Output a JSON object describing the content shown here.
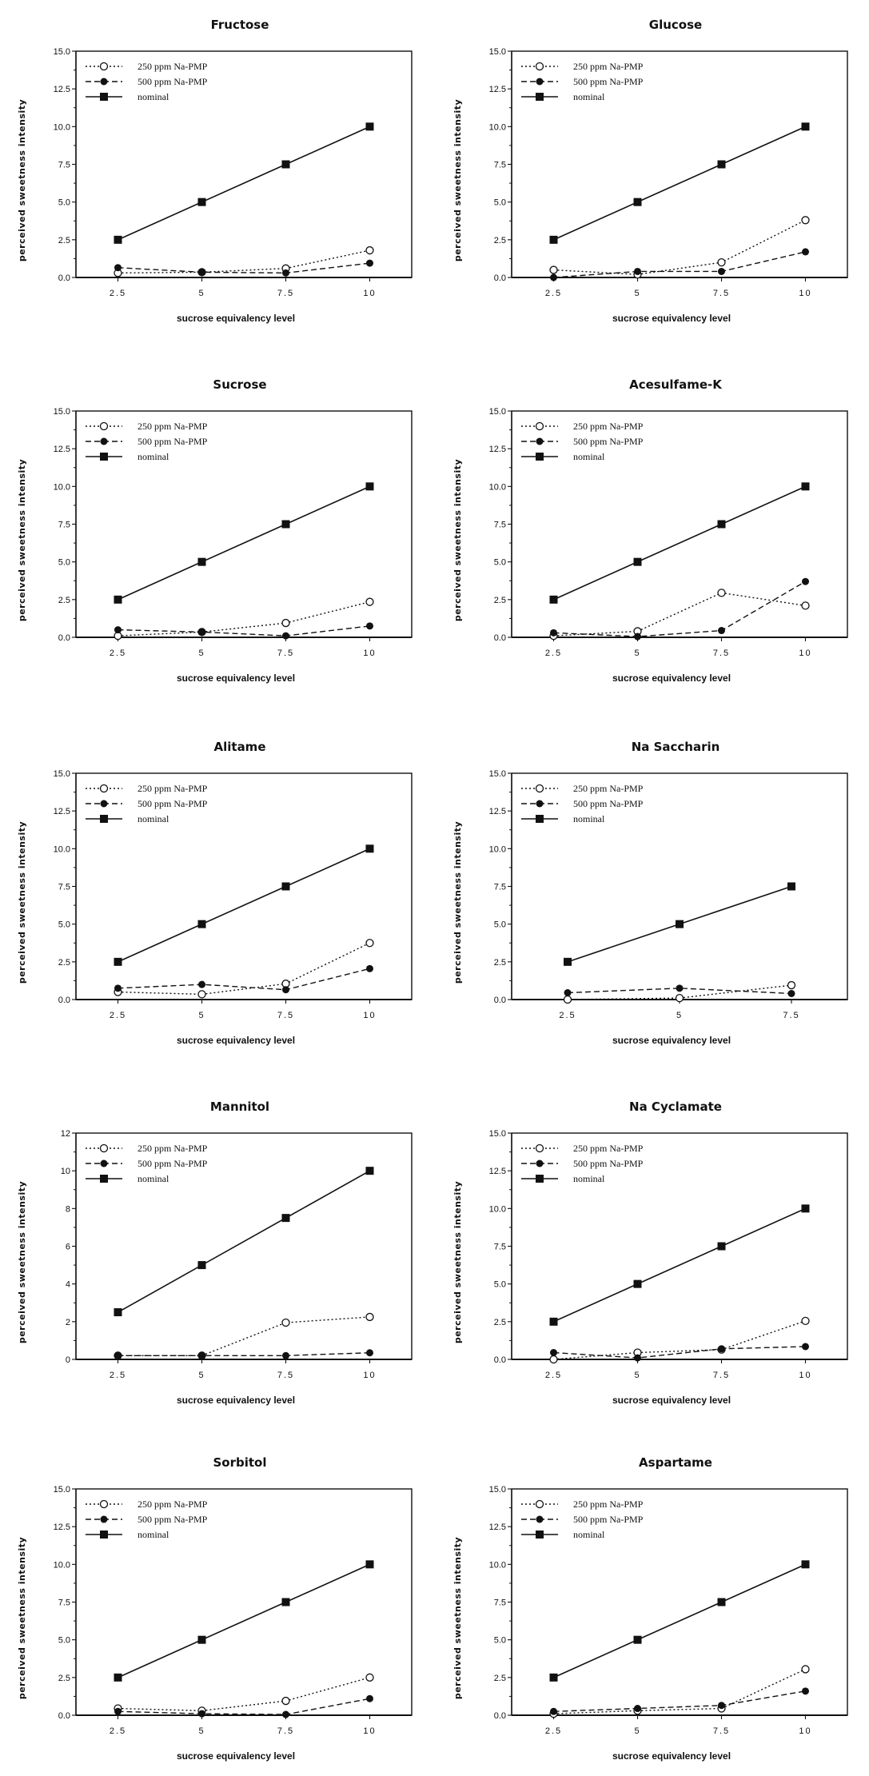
{
  "chart_data": [
    {
      "type": "line",
      "title": "Fructose",
      "xlabel": "sucrose equivalency level",
      "ylabel": "perceived sweetness intensity",
      "x": [
        2.5,
        5,
        7.5,
        10
      ],
      "x_tick_labels": [
        "2.5",
        "5",
        "7.5",
        "10"
      ],
      "ylim": [
        0,
        15
      ],
      "y_ticks": [
        0,
        2.5,
        5,
        7.5,
        10,
        12.5,
        15
      ],
      "y_tick_labels": [
        "0.0",
        "2.5",
        "5.0",
        "7.5",
        "10.0",
        "12.5",
        "15.0"
      ],
      "grid": false,
      "legend": "top-left",
      "series": [
        {
          "name": "250 ppm Na-PMP",
          "marker": "open-circle",
          "line": "dotted",
          "values": [
            0.3,
            0.35,
            0.6,
            1.8
          ]
        },
        {
          "name": "500 ppm Na-PMP",
          "marker": "filled-circle",
          "line": "dashed",
          "values": [
            0.65,
            0.35,
            0.3,
            0.95
          ]
        },
        {
          "name": "nominal",
          "marker": "filled-square",
          "line": "solid",
          "values": [
            2.5,
            5,
            7.5,
            10
          ]
        }
      ]
    },
    {
      "type": "line",
      "title": "Glucose",
      "xlabel": "sucrose equivalency level",
      "ylabel": "perceived sweetness intensity",
      "x": [
        2.5,
        5,
        7.5,
        10
      ],
      "x_tick_labels": [
        "2.5",
        "5",
        "7.5",
        "10"
      ],
      "ylim": [
        0,
        15
      ],
      "y_ticks": [
        0,
        2.5,
        5,
        7.5,
        10,
        12.5,
        15
      ],
      "y_tick_labels": [
        "0.0",
        "2.5",
        "5.0",
        "7.5",
        "10.0",
        "12.5",
        "15.0"
      ],
      "grid": false,
      "legend": "top-left",
      "series": [
        {
          "name": "250 ppm Na-PMP",
          "marker": "open-circle",
          "line": "dotted",
          "values": [
            0.5,
            0.2,
            1.0,
            3.8
          ]
        },
        {
          "name": "500 ppm Na-PMP",
          "marker": "filled-circle",
          "line": "dashed",
          "values": [
            0.0,
            0.4,
            0.4,
            1.7
          ]
        },
        {
          "name": "nominal",
          "marker": "filled-square",
          "line": "solid",
          "values": [
            2.5,
            5,
            7.5,
            10
          ]
        }
      ]
    },
    {
      "type": "line",
      "title": "Sucrose",
      "xlabel": "sucrose equivalency level",
      "ylabel": "perceived sweetness intensity",
      "x": [
        2.5,
        5,
        7.5,
        10
      ],
      "x_tick_labels": [
        "2.5",
        "5",
        "7.5",
        "10"
      ],
      "ylim": [
        0,
        15
      ],
      "y_ticks": [
        0,
        2.5,
        5,
        7.5,
        10,
        12.5,
        15
      ],
      "y_tick_labels": [
        "0.0",
        "2.5",
        "5.0",
        "7.5",
        "10.0",
        "12.5",
        "15.0"
      ],
      "grid": false,
      "legend": "top-left",
      "series": [
        {
          "name": "250 ppm Na-PMP",
          "marker": "open-circle",
          "line": "dotted",
          "values": [
            0.1,
            0.35,
            0.95,
            2.35
          ]
        },
        {
          "name": "500 ppm Na-PMP",
          "marker": "filled-circle",
          "line": "dashed",
          "values": [
            0.5,
            0.35,
            0.1,
            0.75
          ]
        },
        {
          "name": "nominal",
          "marker": "filled-square",
          "line": "solid",
          "values": [
            2.5,
            5,
            7.5,
            10
          ]
        }
      ]
    },
    {
      "type": "line",
      "title": "Acesulfame-K",
      "xlabel": "sucrose equivalency level",
      "ylabel": "perceived sweetness intensity",
      "x": [
        2.5,
        5,
        7.5,
        10
      ],
      "x_tick_labels": [
        "2.5",
        "5",
        "7.5",
        "10"
      ],
      "ylim": [
        0,
        15
      ],
      "y_ticks": [
        0,
        2.5,
        5,
        7.5,
        10,
        12.5,
        15
      ],
      "y_tick_labels": [
        "0.0",
        "2.5",
        "5.0",
        "7.5",
        "10.0",
        "12.5",
        "15.0"
      ],
      "grid": false,
      "legend": "top-left",
      "series": [
        {
          "name": "250 ppm Na-PMP",
          "marker": "open-circle",
          "line": "dotted",
          "values": [
            0.1,
            0.4,
            2.95,
            2.1
          ]
        },
        {
          "name": "500 ppm Na-PMP",
          "marker": "filled-circle",
          "line": "dashed",
          "values": [
            0.3,
            0.05,
            0.45,
            3.7
          ]
        },
        {
          "name": "nominal",
          "marker": "filled-square",
          "line": "solid",
          "values": [
            2.5,
            5,
            7.5,
            10
          ]
        }
      ]
    },
    {
      "type": "line",
      "title": "Alitame",
      "xlabel": "sucrose equivalency level",
      "ylabel": "perceived sweetness intensity",
      "x": [
        2.5,
        5,
        7.5,
        10
      ],
      "x_tick_labels": [
        "2.5",
        "5",
        "7.5",
        "10"
      ],
      "ylim": [
        0,
        15
      ],
      "y_ticks": [
        0,
        2.5,
        5,
        7.5,
        10,
        12.5,
        15
      ],
      "y_tick_labels": [
        "0.0",
        "2.5",
        "5.0",
        "7.5",
        "10.0",
        "12.5",
        "15.0"
      ],
      "grid": false,
      "legend": "top-left",
      "series": [
        {
          "name": "250 ppm Na-PMP",
          "marker": "open-circle",
          "line": "dotted",
          "values": [
            0.5,
            0.35,
            1.05,
            3.75
          ]
        },
        {
          "name": "500 ppm Na-PMP",
          "marker": "filled-circle",
          "line": "dashed",
          "values": [
            0.75,
            1.0,
            0.65,
            2.05
          ]
        },
        {
          "name": "nominal",
          "marker": "filled-square",
          "line": "solid",
          "values": [
            2.5,
            5,
            7.5,
            10
          ]
        }
      ]
    },
    {
      "type": "line",
      "title": "Na Saccharin",
      "xlabel": "sucrose equivalency level",
      "ylabel": "perceived sweetness intensity",
      "x": [
        2.5,
        5,
        7.5
      ],
      "x_tick_labels": [
        "2.5",
        "5",
        "7.5"
      ],
      "ylim": [
        0,
        15
      ],
      "y_ticks": [
        0,
        2.5,
        5,
        7.5,
        10,
        12.5,
        15
      ],
      "y_tick_labels": [
        "0.0",
        "2.5",
        "5.0",
        "7.5",
        "10.0",
        "12.5",
        "15.0"
      ],
      "grid": false,
      "legend": "top-left",
      "series": [
        {
          "name": "250 ppm Na-PMP",
          "marker": "open-circle",
          "line": "dotted",
          "values": [
            0.0,
            0.1,
            0.95
          ]
        },
        {
          "name": "500 ppm Na-PMP",
          "marker": "filled-circle",
          "line": "dashed",
          "values": [
            0.45,
            0.75,
            0.4
          ]
        },
        {
          "name": "nominal",
          "marker": "filled-square",
          "line": "solid",
          "values": [
            2.5,
            5,
            7.5
          ]
        }
      ]
    },
    {
      "type": "line",
      "title": "Mannitol",
      "xlabel": "sucrose equivalency level",
      "ylabel": "perceived sweetness intensity",
      "x": [
        2.5,
        5,
        7.5,
        10
      ],
      "x_tick_labels": [
        "2.5",
        "5",
        "7.5",
        "10"
      ],
      "ylim": [
        0,
        12
      ],
      "y_ticks": [
        0,
        2,
        4,
        6,
        8,
        10,
        12
      ],
      "y_tick_labels": [
        "0",
        "2",
        "4",
        "6",
        "8",
        "10",
        "12"
      ],
      "grid": false,
      "legend": "top-left",
      "series": [
        {
          "name": "250 ppm Na-PMP",
          "marker": "open-circle",
          "line": "dotted",
          "values": [
            0.2,
            0.2,
            1.95,
            2.25
          ]
        },
        {
          "name": "500 ppm Na-PMP",
          "marker": "filled-circle",
          "line": "dashed",
          "values": [
            0.2,
            0.2,
            0.2,
            0.35
          ]
        },
        {
          "name": "nominal",
          "marker": "filled-square",
          "line": "solid",
          "values": [
            2.5,
            5,
            7.5,
            10
          ]
        }
      ]
    },
    {
      "type": "line",
      "title": "Na Cyclamate",
      "xlabel": "sucrose equivalency level",
      "ylabel": "perceived sweetness intensity",
      "x": [
        2.5,
        5,
        7.5,
        10
      ],
      "x_tick_labels": [
        "2.5",
        "5",
        "7.5",
        "10"
      ],
      "ylim": [
        0,
        15
      ],
      "y_ticks": [
        0,
        2.5,
        5,
        7.5,
        10,
        12.5,
        15
      ],
      "y_tick_labels": [
        "0.0",
        "2.5",
        "5.0",
        "7.5",
        "10.0",
        "12.5",
        "15.0"
      ],
      "grid": false,
      "legend": "top-left",
      "series": [
        {
          "name": "250 ppm Na-PMP",
          "marker": "open-circle",
          "line": "dotted",
          "values": [
            0.0,
            0.45,
            0.65,
            2.55
          ]
        },
        {
          "name": "500 ppm Na-PMP",
          "marker": "filled-circle",
          "line": "dashed",
          "values": [
            0.45,
            0.1,
            0.7,
            0.85
          ]
        },
        {
          "name": "nominal",
          "marker": "filled-square",
          "line": "solid",
          "values": [
            2.5,
            5,
            7.5,
            10
          ]
        }
      ]
    },
    {
      "type": "line",
      "title": "Sorbitol",
      "xlabel": "sucrose equivalency level",
      "ylabel": "perceived sweetness intensity",
      "x": [
        2.5,
        5,
        7.5,
        10
      ],
      "x_tick_labels": [
        "2.5",
        "5",
        "7.5",
        "10"
      ],
      "ylim": [
        0,
        15
      ],
      "y_ticks": [
        0,
        2.5,
        5,
        7.5,
        10,
        12.5,
        15
      ],
      "y_tick_labels": [
        "0.0",
        "2.5",
        "5.0",
        "7.5",
        "10.0",
        "12.5",
        "15.0"
      ],
      "grid": false,
      "legend": "top-left",
      "series": [
        {
          "name": "250 ppm Na-PMP",
          "marker": "open-circle",
          "line": "dotted",
          "values": [
            0.45,
            0.3,
            0.95,
            2.5
          ]
        },
        {
          "name": "500 ppm Na-PMP",
          "marker": "filled-circle",
          "line": "dashed",
          "values": [
            0.25,
            0.1,
            0.05,
            1.1
          ]
        },
        {
          "name": "nominal",
          "marker": "filled-square",
          "line": "solid",
          "values": [
            2.5,
            5,
            7.5,
            10
          ]
        }
      ]
    },
    {
      "type": "line",
      "title": "Aspartame",
      "xlabel": "sucrose equivalency level",
      "ylabel": "perceived sweetness intensity",
      "x": [
        2.5,
        5,
        7.5,
        10
      ],
      "x_tick_labels": [
        "2.5",
        "5",
        "7.5",
        "10"
      ],
      "ylim": [
        0,
        15
      ],
      "y_ticks": [
        0,
        2.5,
        5,
        7.5,
        10,
        12.5,
        15
      ],
      "y_tick_labels": [
        "0.0",
        "2.5",
        "5.0",
        "7.5",
        "10.0",
        "12.5",
        "15.0"
      ],
      "grid": false,
      "legend": "top-left",
      "series": [
        {
          "name": "250 ppm Na-PMP",
          "marker": "open-circle",
          "line": "dotted",
          "values": [
            0.1,
            0.3,
            0.45,
            3.05
          ]
        },
        {
          "name": "500 ppm Na-PMP",
          "marker": "filled-circle",
          "line": "dashed",
          "values": [
            0.25,
            0.45,
            0.65,
            1.6
          ]
        },
        {
          "name": "nominal",
          "marker": "filled-square",
          "line": "solid",
          "values": [
            2.5,
            5,
            7.5,
            10
          ]
        }
      ]
    }
  ]
}
